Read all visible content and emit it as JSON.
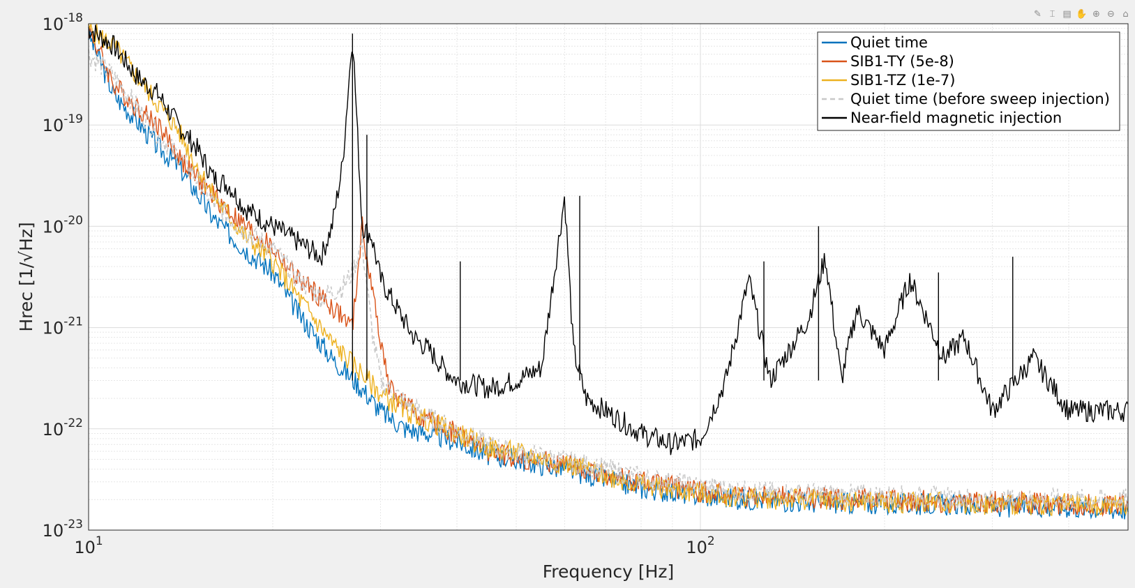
{
  "toolbar": {
    "icons": [
      "edit-plot-icon",
      "insert-datatip-icon",
      "brush-icon",
      "pan-icon",
      "zoom-in-icon",
      "zoom-out-icon",
      "home-icon"
    ]
  },
  "chart_data": {
    "type": "line",
    "xscale": "log",
    "yscale": "log",
    "xlim": [
      10,
      500
    ],
    "ylim": [
      1e-23,
      1e-18
    ],
    "xlabel": "Frequency [Hz]",
    "ylabel": "Hrec [1/√Hz]",
    "x_ticks": [
      {
        "value": 10,
        "base": "10",
        "exp": "1"
      },
      {
        "value": 100,
        "base": "10",
        "exp": "2"
      }
    ],
    "y_ticks": [
      {
        "value": 1e-18,
        "base": "10",
        "exp": "-18"
      },
      {
        "value": 1e-19,
        "base": "10",
        "exp": "-19"
      },
      {
        "value": 1e-20,
        "base": "10",
        "exp": "-20"
      },
      {
        "value": 1e-21,
        "base": "10",
        "exp": "-21"
      },
      {
        "value": 1e-22,
        "base": "10",
        "exp": "-22"
      },
      {
        "value": 1e-23,
        "base": "10",
        "exp": "-23"
      }
    ],
    "grid": true,
    "minor_grid": true,
    "legend_position": "top-right",
    "series": [
      {
        "name": "Quiet time",
        "color": "#0072bd",
        "style": "solid",
        "x": [
          10,
          11,
          12,
          13,
          14,
          15,
          16,
          18,
          20,
          22,
          25,
          28,
          30,
          33,
          36,
          40,
          45,
          50,
          60,
          70,
          80,
          100,
          120,
          150,
          200,
          250,
          300,
          400,
          500
        ],
        "y": [
          8e-19,
          2e-19,
          1.1e-19,
          6e-20,
          4e-20,
          2.2e-20,
          1.2e-20,
          6e-21,
          3.5e-21,
          1.4e-21,
          5e-22,
          2.5e-22,
          1.5e-22,
          1e-22,
          9e-23,
          7.5e-23,
          5.5e-23,
          5e-23,
          4e-23,
          3.2e-23,
          2.6e-23,
          2.2e-23,
          2e-23,
          1.9e-23,
          1.8e-23,
          1.8e-23,
          1.7e-23,
          1.7e-23,
          1.6e-23
        ]
      },
      {
        "name": "SIB1-TY (5e-8)",
        "color": "#d95319",
        "style": "solid",
        "x": [
          10,
          11,
          12,
          13,
          14,
          15,
          16,
          18,
          20,
          22,
          25,
          27,
          28,
          29,
          30,
          31,
          33,
          36,
          40,
          45,
          50,
          60,
          70,
          80,
          100,
          120,
          150,
          200,
          250,
          300,
          400,
          500
        ],
        "y": [
          9e-19,
          2.5e-19,
          1.5e-19,
          1e-19,
          5e-20,
          3e-20,
          2e-20,
          1e-20,
          6e-21,
          3e-21,
          1.6e-21,
          1e-21,
          1e-20,
          2.5e-21,
          8e-22,
          2.5e-22,
          1.7e-22,
          1.2e-22,
          9e-23,
          6e-23,
          5.2e-23,
          4.4e-23,
          3.5e-23,
          3e-23,
          2.4e-23,
          2.2e-23,
          2.1e-23,
          2e-23,
          1.9e-23,
          1.9e-23,
          1.8e-23,
          1.8e-23
        ]
      },
      {
        "name": "SIB1-TZ (1e-7)",
        "color": "#edb120",
        "style": "solid",
        "x": [
          10,
          11,
          12,
          13,
          14,
          15,
          16,
          18,
          20,
          22,
          25,
          28,
          30,
          33,
          36,
          40,
          45,
          50,
          60,
          70,
          80,
          100,
          120,
          150,
          200,
          250,
          300,
          400,
          500
        ],
        "y": [
          9e-19,
          6e-19,
          3e-19,
          1.6e-19,
          9e-20,
          4e-20,
          2e-20,
          8e-21,
          4.5e-21,
          2e-21,
          7e-22,
          3.5e-22,
          2.2e-22,
          1.5e-22,
          1.2e-22,
          9e-23,
          6.5e-23,
          5.8e-23,
          4.6e-23,
          3.5e-23,
          2.8e-23,
          2.3e-23,
          2.1e-23,
          2e-23,
          1.9e-23,
          1.9e-23,
          1.8e-23,
          1.8e-23,
          1.7e-23
        ]
      },
      {
        "name": "Quiet time (before sweep injection)",
        "color": "#c8c8c8",
        "style": "dashed",
        "x": [
          10,
          11,
          12,
          13,
          14,
          15,
          16,
          18,
          20,
          22,
          24,
          26,
          27,
          28,
          29,
          30,
          33,
          36,
          40,
          45,
          50,
          60,
          70,
          80,
          100,
          120,
          150,
          200,
          250,
          300,
          400,
          500
        ],
        "y": [
          5e-19,
          3e-19,
          1.5e-19,
          8e-20,
          5e-20,
          3e-20,
          1.7e-20,
          9e-21,
          6e-21,
          3e-21,
          2e-21,
          2.5e-21,
          3.5e-21,
          7e-21,
          1e-21,
          3e-22,
          1.8e-22,
          1.3e-22,
          9.5e-23,
          7e-23,
          5.8e-23,
          4.8e-23,
          4e-23,
          3.3e-23,
          2.7e-23,
          2.4e-23,
          2.3e-23,
          2.2e-23,
          2.1e-23,
          2e-23,
          2e-23,
          2e-23
        ]
      },
      {
        "name": "Near-field magnetic injection",
        "color": "#000000",
        "style": "solid",
        "x": [
          10,
          11,
          12,
          13,
          14,
          15,
          16,
          17,
          18,
          20,
          22,
          24,
          25,
          26,
          27,
          28,
          29,
          30,
          32,
          34,
          36,
          38,
          40,
          45,
          50,
          55,
          60,
          62,
          65,
          70,
          80,
          90,
          100,
          110,
          120,
          130,
          150,
          160,
          170,
          180,
          200,
          220,
          250,
          270,
          300,
          350,
          400,
          500
        ],
        "y": [
          9e-19,
          6e-19,
          3e-19,
          2e-19,
          1e-19,
          6e-20,
          3e-20,
          2.5e-20,
          1.5e-20,
          1e-20,
          7e-21,
          5e-21,
          1e-20,
          4e-20,
          8e-19,
          1e-20,
          8e-21,
          3e-21,
          1.5e-21,
          8e-22,
          6e-22,
          4e-22,
          3e-22,
          2.5e-22,
          3e-22,
          4e-22,
          2e-20,
          6e-22,
          2e-22,
          1.5e-22,
          9e-23,
          7e-23,
          8e-23,
          3e-22,
          3e-21,
          3e-22,
          1.2e-21,
          5e-21,
          3e-22,
          1.5e-21,
          6e-22,
          3e-21,
          5e-22,
          8e-22,
          1.5e-22,
          5e-22,
          1.5e-22,
          1.5e-22
        ]
      }
    ],
    "annotations": [
      {
        "series": 4,
        "x": 27,
        "y": 8e-19
      },
      {
        "series": 4,
        "x": 28.5,
        "y": 8e-20
      },
      {
        "series": 4,
        "x": 40.5,
        "y": 4.5e-21
      },
      {
        "series": 4,
        "x": 63.5,
        "y": 2e-20
      },
      {
        "series": 4,
        "x": 127,
        "y": 4.5e-21
      },
      {
        "series": 4,
        "x": 156,
        "y": 1e-20
      },
      {
        "series": 4,
        "x": 245,
        "y": 3.5e-21
      },
      {
        "series": 4,
        "x": 324,
        "y": 5e-21
      }
    ]
  }
}
